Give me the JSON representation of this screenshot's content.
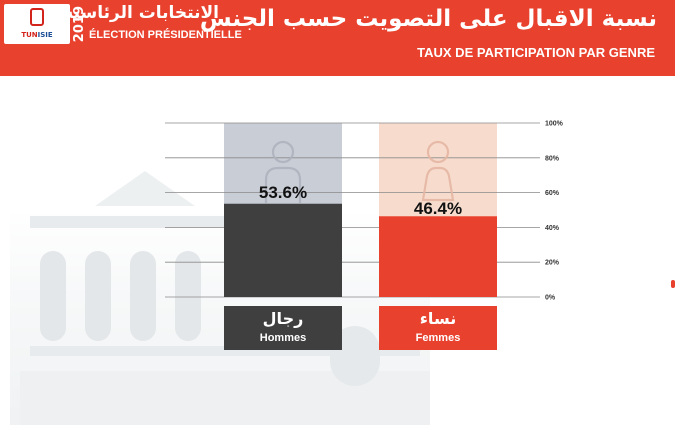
{
  "header": {
    "year": "2019",
    "event_ar": "الانتخابات الرئاسية",
    "event_fr": "ÉLECTION PRÉSIDENTIELLE",
    "logo_text_tn": "TUN",
    "logo_text_isie": "ISIE"
  },
  "colors": {
    "header": "#e8412d",
    "men": "#3f3f3f",
    "men_track": "#c9cdd6",
    "women": "#e8412d",
    "women_track": "#f7dccd"
  },
  "chart_data": {
    "type": "bar",
    "title": "نسبة الاقبال على التصويت حسب الجنس",
    "subtitle": "TAUX DE PARTICIPATION PAR GENRE",
    "categories": [
      "رجال Hommes",
      "نساء Femmes"
    ],
    "category_labels_ar": [
      "رجال",
      "نساء"
    ],
    "category_labels_fr": [
      "Hommes",
      "Femmes"
    ],
    "values": [
      53.6,
      46.4
    ],
    "data_labels": [
      "53.6%",
      "46.4%"
    ],
    "ylim": [
      0,
      100
    ],
    "yticks": [
      "0%",
      "20%",
      "40%",
      "60%",
      "80%",
      "100%"
    ],
    "grid": true,
    "icons": [
      "man-icon",
      "woman-icon"
    ]
  }
}
